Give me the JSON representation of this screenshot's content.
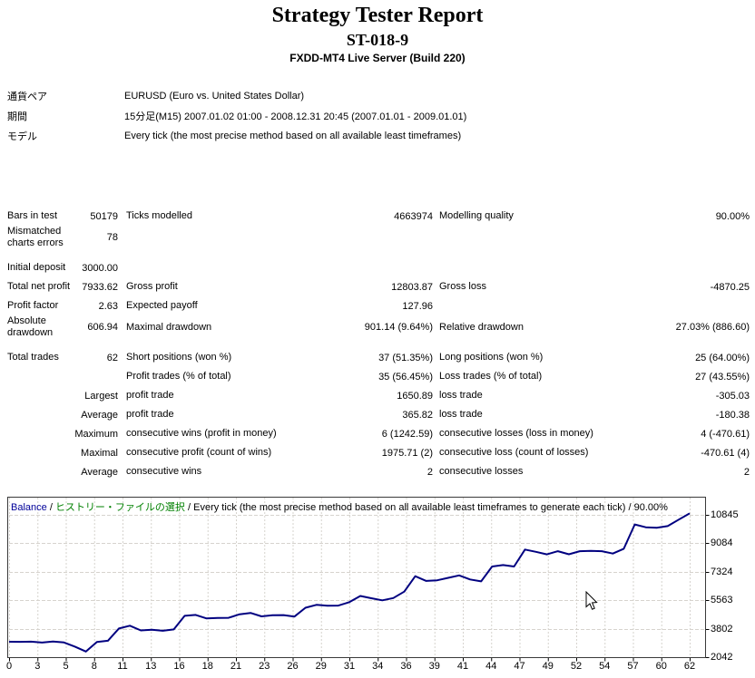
{
  "header": {
    "title": "Strategy Tester Report",
    "subtitle": "ST-018-9",
    "server": "FXDD-MT4 Live Server (Build 220)"
  },
  "params": [
    {
      "label": "通貨ペア",
      "value": "EURUSD (Euro vs. United States Dollar)"
    },
    {
      "label": "期間",
      "value": "15分足(M15) 2007.01.02 01:00 - 2008.12.31 20:45 (2007.01.01 - 2009.01.01)"
    },
    {
      "label": "モデル",
      "value": "Every tick (the most precise method based on all available least timeframes)"
    }
  ],
  "stats": {
    "rows": [
      {
        "cells": [
          "Bars in test",
          "50179",
          "Ticks modelled",
          "4663974",
          "Modelling quality",
          "90.00%"
        ],
        "gap": false
      },
      {
        "cells": [
          "Mismatched charts errors",
          "78",
          "",
          "",
          "",
          ""
        ],
        "gap": false
      },
      {
        "cells": [
          "Initial deposit",
          "3000.00",
          "",
          "",
          "",
          ""
        ],
        "gap": true
      },
      {
        "cells": [
          "Total net profit",
          "7933.62",
          "Gross profit",
          "12803.87",
          "Gross loss",
          "-4870.25"
        ],
        "gap": false
      },
      {
        "cells": [
          "Profit factor",
          "2.63",
          "Expected payoff",
          "127.96",
          "",
          ""
        ],
        "gap": false
      },
      {
        "cells": [
          "Absolute drawdown",
          "606.94",
          "Maximal drawdown",
          "901.14 (9.64%)",
          "Relative drawdown",
          "27.03% (886.60)"
        ],
        "gap": false
      },
      {
        "cells": [
          "Total trades",
          "62",
          "Short positions (won %)",
          "37 (51.35%)",
          "Long positions (won %)",
          "25 (64.00%)"
        ],
        "gap": true
      },
      {
        "cells": [
          "",
          "",
          "Profit trades (% of total)",
          "35 (56.45%)",
          "Loss trades (% of total)",
          "27 (43.55%)"
        ],
        "gap": false
      },
      {
        "cells": [
          "",
          "Largest",
          "profit trade",
          "1650.89",
          "loss trade",
          "-305.03"
        ],
        "gap": false
      },
      {
        "cells": [
          "",
          "Average",
          "profit trade",
          "365.82",
          "loss trade",
          "-180.38"
        ],
        "gap": false
      },
      {
        "cells": [
          "",
          "Maximum",
          "consecutive wins (profit in money)",
          "6 (1242.59)",
          "consecutive losses (loss in money)",
          "4 (-470.61)"
        ],
        "gap": false
      },
      {
        "cells": [
          "",
          "Maximal",
          "consecutive profit (count of wins)",
          "1975.71 (2)",
          "consecutive loss (count of losses)",
          "-470.61 (4)"
        ],
        "gap": false
      },
      {
        "cells": [
          "",
          "Average",
          "consecutive wins",
          "2",
          "consecutive losses",
          "2"
        ],
        "gap": false
      }
    ]
  },
  "chart_data": {
    "type": "line",
    "legend": {
      "balance_label": "Balance",
      "separator": " / ",
      "history_label": "ヒストリー・ファイルの選択",
      "model_label": "Every tick (the most precise method based on all available least timeframes to generate each tick)",
      "quality_label": "90.00%"
    },
    "x_tick_labels": [
      "0",
      "3",
      "5",
      "8",
      "11",
      "13",
      "16",
      "18",
      "21",
      "23",
      "26",
      "29",
      "31",
      "34",
      "36",
      "39",
      "41",
      "44",
      "47",
      "49",
      "52",
      "54",
      "57",
      "60",
      "62"
    ],
    "y_tick_labels": [
      "10845",
      "9084",
      "7324",
      "5563",
      "3802",
      "2042"
    ],
    "y_ticks": [
      10845,
      9084,
      7324,
      5563,
      3802,
      2042
    ],
    "x_range": [
      0,
      62
    ],
    "y_range": [
      2042,
      10845
    ],
    "grid": true,
    "line_color": "#000080",
    "grid_color": "#d6d3ce",
    "series": [
      {
        "name": "Balance",
        "x": [
          0,
          1,
          2,
          3,
          4,
          5,
          6,
          7,
          8,
          9,
          10,
          11,
          12,
          13,
          14,
          15,
          16,
          17,
          18,
          19,
          20,
          21,
          22,
          23,
          24,
          25,
          26,
          27,
          28,
          29,
          30,
          31,
          32,
          33,
          34,
          35,
          36,
          37,
          38,
          39,
          40,
          41,
          42,
          43,
          44,
          45,
          46,
          47,
          48,
          49,
          50,
          51,
          52,
          53,
          54,
          55,
          56,
          57,
          58,
          59,
          60,
          61,
          62
        ],
        "y": [
          3000,
          2995,
          3005,
          2950,
          3010,
          2955,
          2700,
          2393,
          2990,
          3060,
          3820,
          3990,
          3700,
          3745,
          3680,
          3760,
          4600,
          4660,
          4440,
          4470,
          4480,
          4700,
          4780,
          4570,
          4640,
          4650,
          4560,
          5100,
          5280,
          5230,
          5235,
          5450,
          5830,
          5690,
          5560,
          5700,
          6100,
          7050,
          6760,
          6800,
          6950,
          7100,
          6850,
          6730,
          7650,
          7740,
          7650,
          8700,
          8560,
          8400,
          8600,
          8410,
          8600,
          8620,
          8600,
          8450,
          8750,
          10250,
          10080,
          10050,
          10150,
          10550,
          10933
        ]
      }
    ]
  }
}
